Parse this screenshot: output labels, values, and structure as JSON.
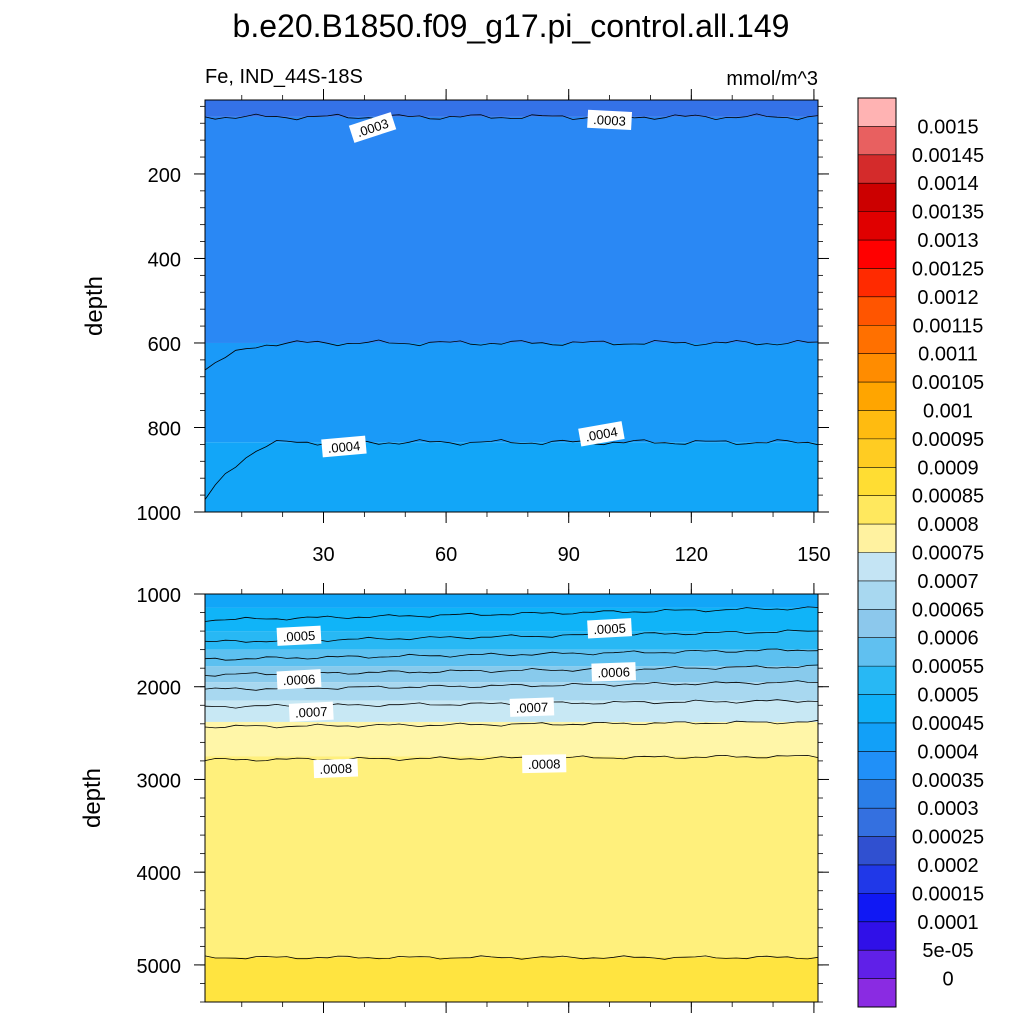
{
  "chart_data": {
    "type": "contour",
    "title": "b.e20.B1850.f09_g17.pi_control.all.149",
    "variable_label": "Fe, IND_44S-18S",
    "units_label": "mmol/m^3",
    "colorbar": {
      "levels": [
        "0.0015",
        "0.00145",
        "0.0014",
        "0.00135",
        "0.0013",
        "0.00125",
        "0.0012",
        "0.00115",
        "0.0011",
        "0.00105",
        "0.001",
        "0.00095",
        "0.0009",
        "0.00085",
        "0.0008",
        "0.00075",
        "0.0007",
        "0.00065",
        "0.0006",
        "0.00055",
        "0.0005",
        "0.00045",
        "0.0004",
        "0.00035",
        "0.0003",
        "0.00025",
        "0.0002",
        "0.00015",
        "0.0001",
        "5e-05",
        "0"
      ],
      "colors": [
        "#ffb3b3",
        "#e86060",
        "#d42b2b",
        "#cc0000",
        "#e00000",
        "#ff0000",
        "#ff2a00",
        "#ff5500",
        "#ff7000",
        "#ff8c00",
        "#ffa500",
        "#ffbb10",
        "#ffcc22",
        "#ffdd33",
        "#ffe85e",
        "#fff2a0",
        "#c4e4f4",
        "#a8d8f0",
        "#8cc8ec",
        "#60c0f0",
        "#28b8f4",
        "#10b0f8",
        "#12a0f8",
        "#2090f8",
        "#2a7ee8",
        "#3470e0",
        "#3050d0",
        "#2038e8",
        "#1018f4",
        "#3010e8",
        "#6020e8",
        "#8a2be2"
      ]
    },
    "panels": [
      {
        "ylabel": "depth",
        "y_ticks": [
          "200",
          "400",
          "600",
          "800",
          "1000"
        ],
        "x_ticks": [
          "30",
          "60",
          "90",
          "120",
          "150"
        ],
        "ylim": [
          25,
          1000
        ],
        "xlim": [
          1,
          151
        ],
        "bands": [
          {
            "level": "0.0003",
            "color": "#3472e8"
          },
          {
            "level": "0.00035",
            "color": "#2a88f4"
          },
          {
            "level": "0.0004",
            "color": "#1a9af8"
          },
          {
            "level": "0.00045",
            "color": "#12a6f8"
          }
        ],
        "contour_depths": [
          65,
          600,
          835
        ],
        "contour_labels": [
          {
            "text": ".0003",
            "x": 42,
            "depth": 90,
            "angle": -18
          },
          {
            "text": ".0003",
            "x": 100,
            "depth": 72,
            "angle": 3
          },
          {
            "text": ".0004",
            "x": 35,
            "depth": 845,
            "angle": -5
          },
          {
            "text": ".0004",
            "x": 98,
            "depth": 815,
            "angle": -10
          }
        ]
      },
      {
        "ylabel": "depth",
        "y_ticks": [
          "1000",
          "2000",
          "3000",
          "4000",
          "5000"
        ],
        "ylim": [
          1000,
          5400
        ],
        "xlim": [
          1,
          151
        ],
        "bands": [
          {
            "level": "0.00045",
            "color": "#12a6f8"
          },
          {
            "level": "0.0005",
            "color": "#10b4f8"
          },
          {
            "level": "0.00055",
            "color": "#28b8f4"
          },
          {
            "level": "0.0006",
            "color": "#5cc0f0"
          },
          {
            "level": "0.00065",
            "color": "#88caec"
          },
          {
            "level": "0.0007",
            "color": "#a8d8f0"
          },
          {
            "level": "0.00075",
            "color": "#c8e8f4"
          },
          {
            "level": "0.0008",
            "color": "#fff6a8"
          },
          {
            "level": "0.00085",
            "color": "#fff07c"
          },
          {
            "level": "0.0009",
            "color": "#ffe440"
          }
        ],
        "contour_depths": [
          1150,
          1400,
          1600,
          1780,
          1950,
          2150,
          2380,
          2750,
          4920
        ],
        "contour_labels": [
          {
            "text": ".0005",
            "x": 24,
            "depth": 1450,
            "angle": -3
          },
          {
            "text": ".0005",
            "x": 100,
            "depth": 1370,
            "angle": -3
          },
          {
            "text": ".0006",
            "x": 24,
            "depth": 1920,
            "angle": -3
          },
          {
            "text": ".0006",
            "x": 101,
            "depth": 1840,
            "angle": -2
          },
          {
            "text": ".0007",
            "x": 27,
            "depth": 2270,
            "angle": -3
          },
          {
            "text": ".0007",
            "x": 81,
            "depth": 2220,
            "angle": -2
          },
          {
            "text": ".0008",
            "x": 33,
            "depth": 2880,
            "angle": -2
          },
          {
            "text": ".0008",
            "x": 84,
            "depth": 2830,
            "angle": -1
          }
        ]
      }
    ]
  }
}
